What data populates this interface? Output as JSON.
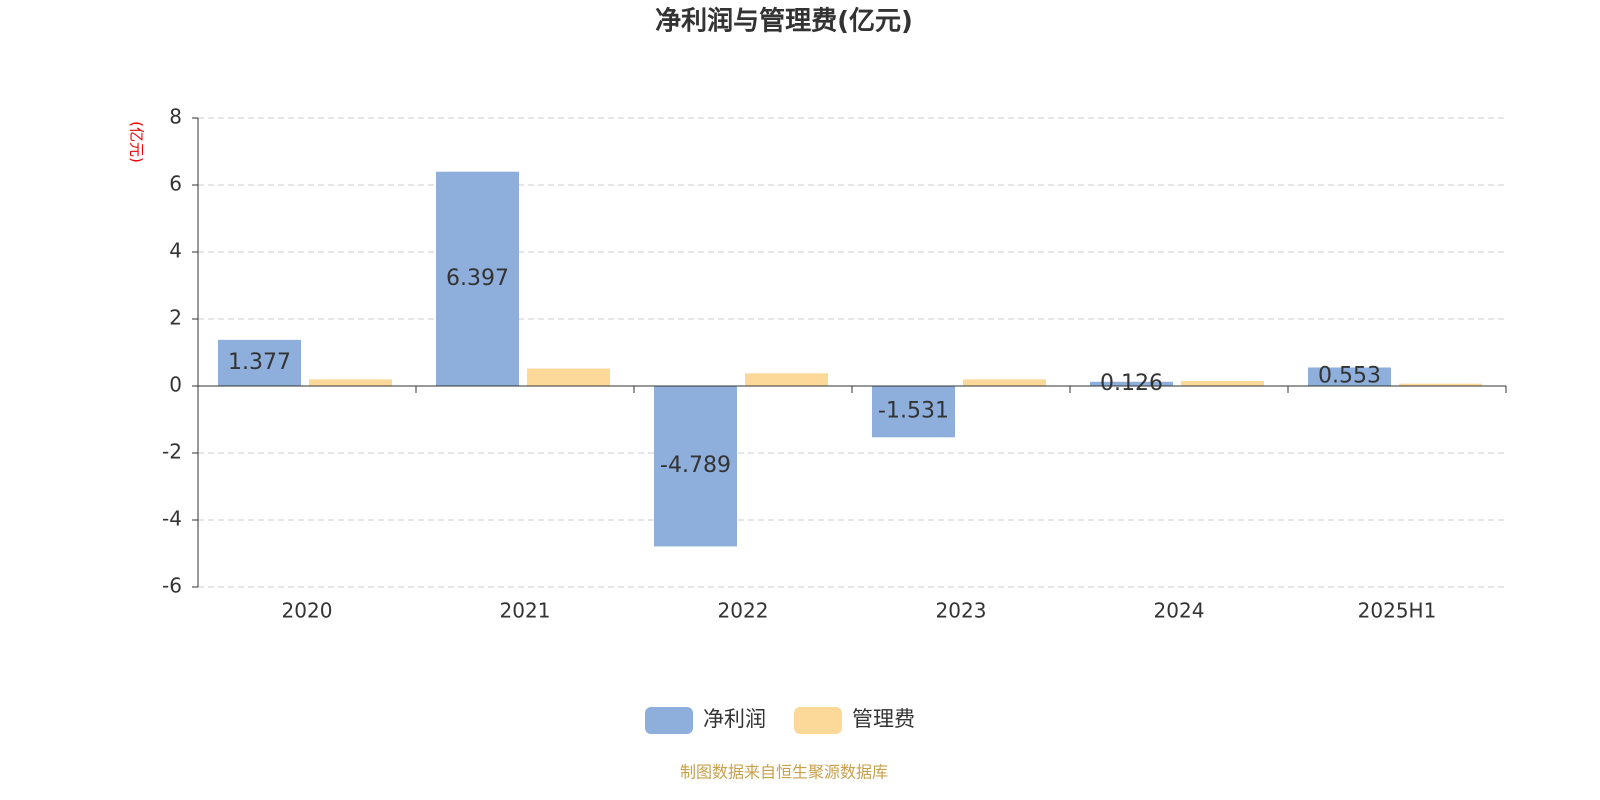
{
  "chart_data": {
    "type": "bar",
    "title": "净利润与管理费(亿元)",
    "y_label": "(亿元)",
    "categories": [
      "2020",
      "2021",
      "2022",
      "2023",
      "2024",
      "2025H1"
    ],
    "series": [
      {
        "name": "净利润",
        "color": "#8eafdb",
        "labels": true,
        "values": [
          1.377,
          6.397,
          -4.789,
          -1.531,
          0.126,
          0.553
        ]
      },
      {
        "name": "管理费",
        "color": "#fdd999",
        "labels": false,
        "values": [
          0.2,
          0.52,
          0.38,
          0.2,
          0.15,
          0.07
        ]
      }
    ],
    "ylim": [
      -6,
      8
    ],
    "yticks": [
      -6,
      -4,
      -2,
      0,
      2,
      4,
      6,
      8
    ],
    "grid": true,
    "source": "制图数据来自恒生聚源数据库"
  }
}
